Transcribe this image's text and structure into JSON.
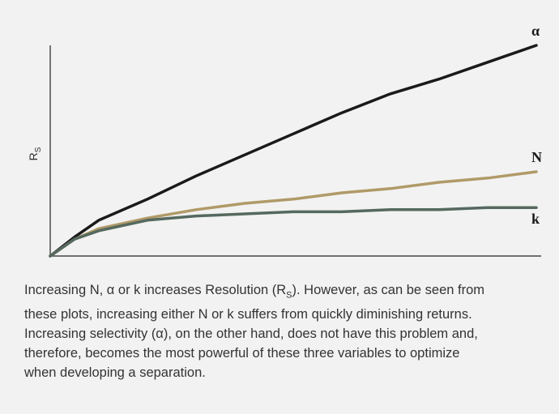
{
  "chart_data": {
    "type": "line",
    "y_label": {
      "text": "R",
      "subscript": "S"
    },
    "x": [
      0,
      5,
      10,
      20,
      30,
      40,
      50,
      60,
      70,
      80,
      90,
      100
    ],
    "xlim": [
      0,
      100
    ],
    "ylim": [
      0,
      100
    ],
    "series": [
      {
        "name": "α",
        "color": "#1a1a1a",
        "values": [
          0,
          9,
          17,
          27,
          38,
          48,
          58,
          68,
          77,
          84,
          92,
          100
        ]
      },
      {
        "name": "N",
        "color": "#b09a68",
        "values": [
          0,
          8,
          13,
          18,
          22,
          25,
          27,
          30,
          32,
          35,
          37,
          40
        ]
      },
      {
        "name": "k",
        "color": "#55695f",
        "values": [
          0,
          8,
          12,
          17,
          19,
          20,
          21,
          21,
          22,
          22,
          23,
          23
        ]
      }
    ]
  },
  "caption": {
    "before": "Increasing N, α or k increases Resolution (R",
    "subscript": "S",
    "after": "). However, as can be seen from these plots, increasing either N or k suffers from quickly diminishing returns. Increasing selectivity (α), on the other hand, does not have this problem and, therefore, becomes the most powerful of these three variables to optimize when developing a separation."
  }
}
